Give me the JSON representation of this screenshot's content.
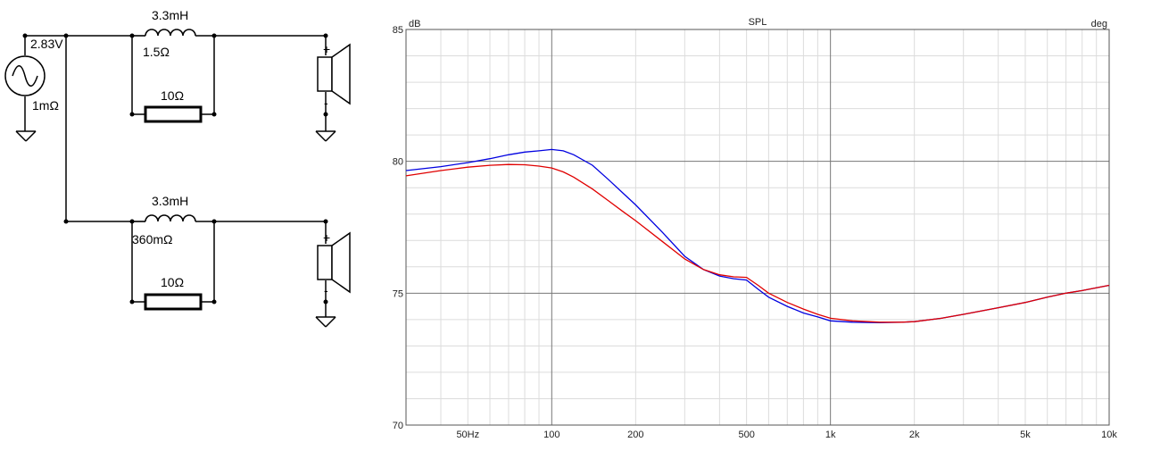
{
  "schematic": {
    "source": {
      "voltage": "2.83V",
      "resistance": "1mΩ"
    },
    "branches": [
      {
        "inductor_value": "3.3mH",
        "inductor_resistance": "1.5Ω",
        "parallel_resistor": "10Ω"
      },
      {
        "inductor_value": "3.3mH",
        "inductor_resistance": "360mΩ",
        "parallel_resistor": "10Ω"
      }
    ],
    "speaker_plus": "+",
    "speaker_minus": "-"
  },
  "chart_data": {
    "type": "line",
    "title": "SPL",
    "ylabel": "dB",
    "y2label": "deg",
    "xscale": "log",
    "xlim": [
      30,
      10000
    ],
    "ylim": [
      70,
      85
    ],
    "x_ticks": [
      {
        "value": 50,
        "label": "50Hz"
      },
      {
        "value": 100,
        "label": "100"
      },
      {
        "value": 200,
        "label": "200"
      },
      {
        "value": 500,
        "label": "500"
      },
      {
        "value": 1000,
        "label": "1k"
      },
      {
        "value": 2000,
        "label": "2k"
      },
      {
        "value": 5000,
        "label": "5k"
      },
      {
        "value": 10000,
        "label": "10k"
      }
    ],
    "y_ticks": [
      {
        "value": 70,
        "label": "70"
      },
      {
        "value": 75,
        "label": "75"
      },
      {
        "value": 80,
        "label": "80"
      },
      {
        "value": 85,
        "label": "85"
      }
    ],
    "grid": true,
    "series": [
      {
        "color": "#0000e0",
        "x": [
          30,
          40,
          50,
          60,
          70,
          80,
          90,
          100,
          110,
          120,
          140,
          160,
          180,
          200,
          250,
          300,
          350,
          400,
          450,
          500,
          550,
          600,
          700,
          800,
          900,
          1000,
          1200,
          1500,
          1800,
          2000,
          2500,
          3000,
          4000,
          5000,
          6000,
          7000,
          8000,
          10000
        ],
        "y": [
          79.65,
          79.8,
          79.95,
          80.1,
          80.25,
          80.35,
          80.4,
          80.45,
          80.4,
          80.25,
          79.85,
          79.3,
          78.8,
          78.35,
          77.3,
          76.4,
          75.9,
          75.65,
          75.55,
          75.5,
          75.15,
          74.85,
          74.5,
          74.25,
          74.1,
          73.95,
          73.9,
          73.88,
          73.9,
          73.92,
          74.05,
          74.2,
          74.45,
          74.65,
          74.85,
          75.0,
          75.1,
          75.3
        ]
      },
      {
        "color": "#e00000",
        "x": [
          30,
          40,
          50,
          60,
          70,
          80,
          90,
          100,
          110,
          120,
          140,
          160,
          180,
          200,
          250,
          300,
          350,
          400,
          450,
          500,
          550,
          600,
          700,
          800,
          900,
          1000,
          1200,
          1500,
          1800,
          2000,
          2500,
          3000,
          4000,
          5000,
          6000,
          7000,
          8000,
          10000
        ],
        "y": [
          79.45,
          79.65,
          79.78,
          79.85,
          79.88,
          79.87,
          79.82,
          79.75,
          79.6,
          79.4,
          78.95,
          78.5,
          78.1,
          77.75,
          76.95,
          76.3,
          75.9,
          75.7,
          75.62,
          75.6,
          75.3,
          75.0,
          74.65,
          74.4,
          74.2,
          74.05,
          73.95,
          73.9,
          73.9,
          73.92,
          74.05,
          74.2,
          74.45,
          74.65,
          74.85,
          75.0,
          75.1,
          75.3
        ]
      }
    ]
  }
}
